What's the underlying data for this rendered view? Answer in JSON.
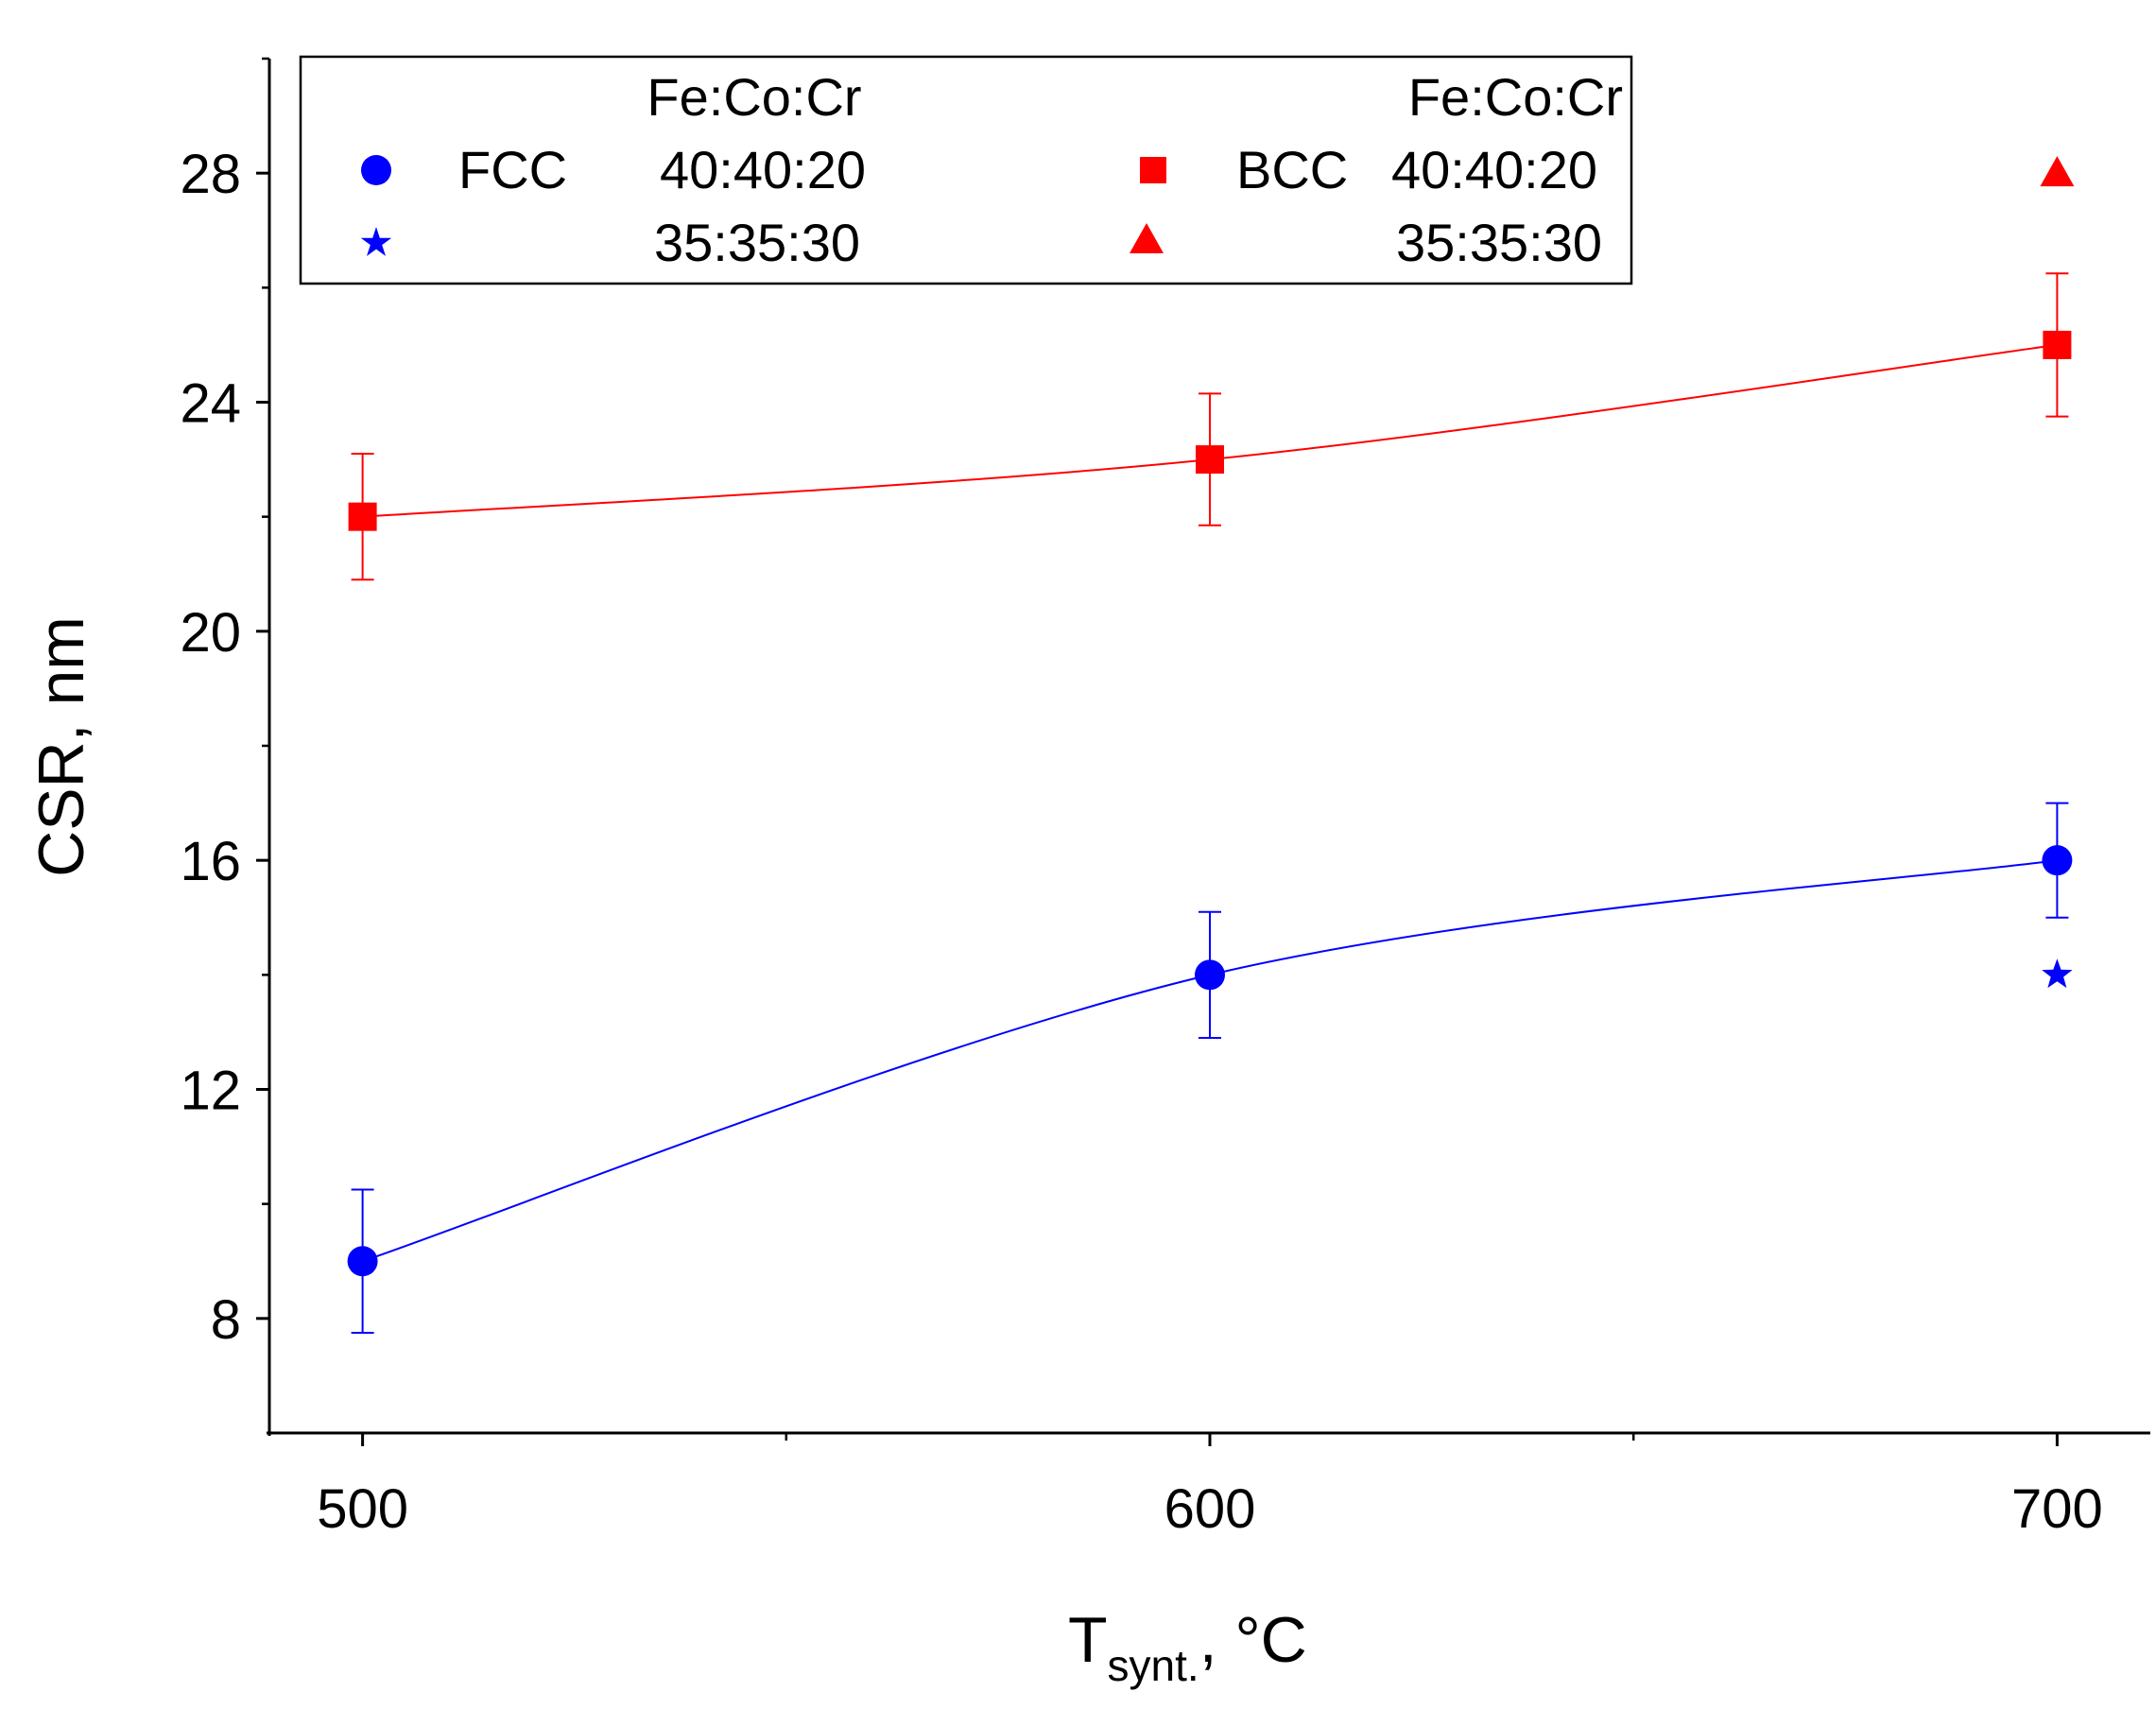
{
  "chart_data": {
    "type": "scatter",
    "xlabel": "T",
    "xlabel_sub": "synt.",
    "xlabel_suffix": ", °C",
    "ylabel": "CSR, nm",
    "xlim": [
      489,
      711
    ],
    "ylim": [
      6,
      30
    ],
    "x_ticks": [
      500,
      600,
      700
    ],
    "x_minor_ticks": [
      550,
      650
    ],
    "y_ticks": [
      8,
      12,
      16,
      20,
      24,
      28
    ],
    "y_minor_ticks": [
      10,
      14,
      18,
      22,
      26,
      30
    ],
    "legend": {
      "position": "top-left",
      "header_left": "Fe:Co:Cr",
      "header_right": "Fe:Co:Cr",
      "phase_left": "FCC",
      "phase_right": "BCC"
    },
    "series": [
      {
        "name": "FCC 40:40:20",
        "phase": "FCC",
        "composition": "40:40:20",
        "marker": "circle",
        "color": "#0000ff",
        "x": [
          500,
          600,
          700
        ],
        "y": [
          9,
          14,
          16
        ],
        "y_err": [
          1.25,
          1.1,
          1.0
        ],
        "fit_line": true
      },
      {
        "name": "FCC 35:35:30",
        "phase": "FCC",
        "composition": "35:35:30",
        "marker": "star",
        "color": "#0000ff",
        "x": [
          700
        ],
        "y": [
          14
        ],
        "y_err": null,
        "fit_line": false
      },
      {
        "name": "BCC 40:40:20",
        "phase": "BCC",
        "composition": "40:40:20",
        "marker": "square",
        "color": "#ff0000",
        "x": [
          500,
          600,
          700
        ],
        "y": [
          22,
          23,
          25
        ],
        "y_err": [
          1.1,
          1.15,
          1.25
        ],
        "fit_line": true
      },
      {
        "name": "BCC 35:35:30",
        "phase": "BCC",
        "composition": "35:35:30",
        "marker": "triangle",
        "color": "#ff0000",
        "x": [
          700
        ],
        "y": [
          28
        ],
        "y_err": null,
        "fit_line": false
      }
    ]
  }
}
